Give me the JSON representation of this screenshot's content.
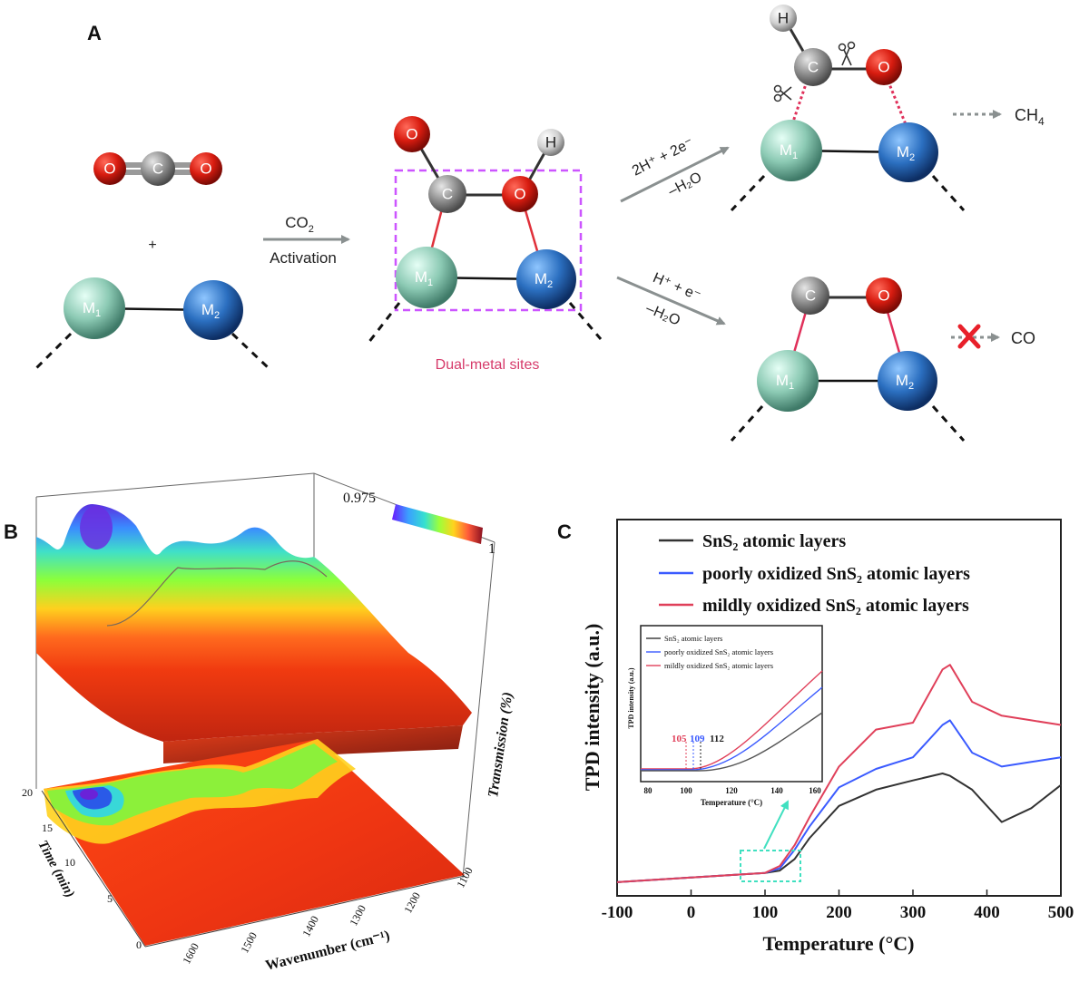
{
  "panels": {
    "a": "A",
    "b": "B",
    "c": "C"
  },
  "atoms": {
    "c": "C",
    "o": "O",
    "h": "H",
    "m1": "M",
    "m1_sub": "1",
    "m2": "M",
    "m2_sub": "2"
  },
  "panelA": {
    "plus": "+",
    "activation_line1": "CO",
    "activation_line1_sub": "2",
    "activation_line2": "Activation",
    "dual_metal_sites": "Dual-metal sites",
    "upper_arrow_top": "2H⁺ + 2e⁻",
    "upper_arrow_bottom": "–H₂O",
    "lower_arrow_top": "H⁺ + e⁻",
    "lower_arrow_bottom": "–H₂O",
    "ch4": "CH",
    "ch4_sub": "4",
    "co": "CO"
  },
  "panelB": {
    "colorbar_min": "0.975",
    "colorbar_max": "1",
    "z_axis_label": "Transmission (%)",
    "y_axis_label": "Time (min)",
    "x_axis_label": "Wavenumber (cm⁻¹)",
    "y_ticks": [
      "20",
      "15",
      "10",
      "5",
      "0"
    ],
    "x_ticks": [
      "1600",
      "1500",
      "1400",
      "1300",
      "1200",
      "1100"
    ]
  },
  "panelC": {
    "legend": [
      {
        "label": "SnS₂ atomic layers",
        "color": "#333333"
      },
      {
        "label": "poorly oxidized SnS₂ atomic layers",
        "color": "#3b5bff"
      },
      {
        "label": "mildly oxidized SnS₂ atomic layers",
        "color": "#e0405a"
      }
    ],
    "inset_marks": [
      {
        "value": "105",
        "color": "#e0405a"
      },
      {
        "value": "109",
        "color": "#3b5bff"
      },
      {
        "value": "112",
        "color": "#222222"
      }
    ],
    "inset_xlabel": "Temperature (°C)",
    "inset_ylabel": "TPD intensity (a.u.)"
  },
  "chart_data": {
    "type": "line",
    "title": "",
    "xlabel": "Temperature (°C)",
    "ylabel": "TPD intensity (a.u.)",
    "xlim": [
      -100,
      500
    ],
    "ylim": [
      0,
      100
    ],
    "xticks": [
      -100,
      0,
      100,
      200,
      300,
      400,
      500
    ],
    "x": [
      -100,
      0,
      50,
      100,
      120,
      140,
      160,
      200,
      250,
      300,
      340,
      350,
      380,
      420,
      460,
      500
    ],
    "series": [
      {
        "name": "SnS₂ atomic layers",
        "color": "#333333",
        "values": [
          2,
          4,
          5,
          6,
          7,
          12,
          21,
          35,
          42,
          46,
          49,
          48,
          42,
          28,
          34,
          44
        ]
      },
      {
        "name": "poorly oxidized SnS₂ atomic layers",
        "color": "#3b5bff",
        "values": [
          2,
          4,
          5,
          6,
          8,
          16,
          26,
          43,
          51,
          56,
          70,
          72,
          58,
          52,
          54,
          56
        ]
      },
      {
        "name": "mildly oxidized SnS₂ atomic layers",
        "color": "#e0405a",
        "values": [
          2,
          4,
          5,
          6,
          9,
          18,
          30,
          52,
          68,
          71,
          94,
          96,
          80,
          74,
          72,
          70
        ]
      }
    ],
    "inset": {
      "xlim": [
        80,
        160
      ],
      "xticks": [
        80,
        100,
        120,
        140,
        160
      ],
      "xlabel": "Temperature (°C)",
      "ylabel": "TPD intensity (a.u.)"
    }
  }
}
